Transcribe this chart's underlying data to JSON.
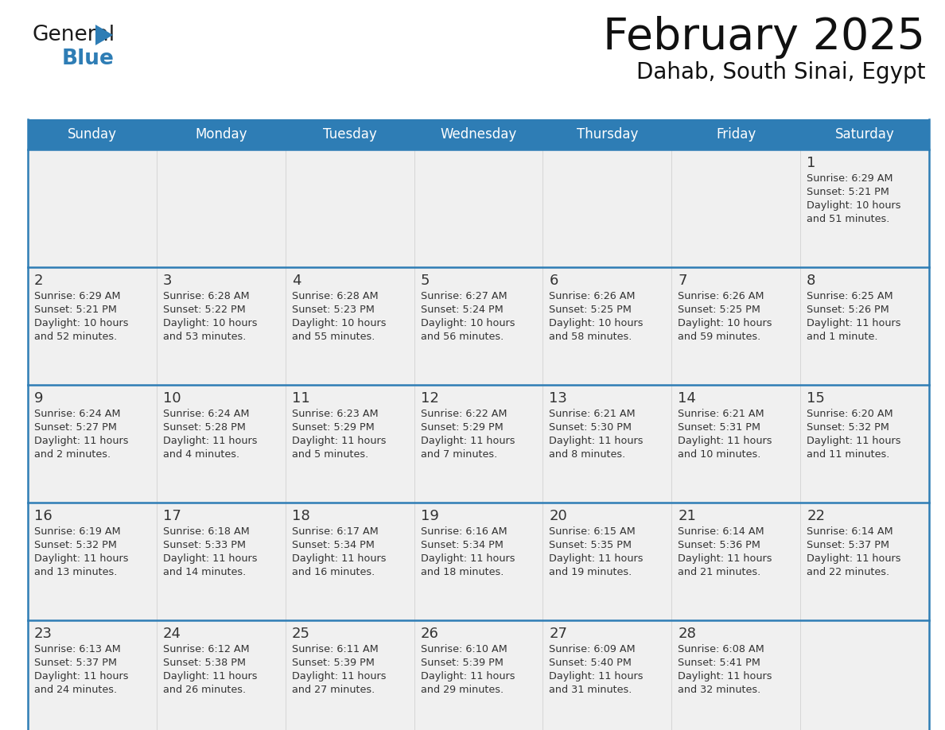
{
  "title": "February 2025",
  "subtitle": "Dahab, South Sinai, Egypt",
  "days_of_week": [
    "Sunday",
    "Monday",
    "Tuesday",
    "Wednesday",
    "Thursday",
    "Friday",
    "Saturday"
  ],
  "header_bg": "#2E7DB5",
  "header_text": "#FFFFFF",
  "cell_bg": "#F0F0F0",
  "divider_color": "#2E7DB5",
  "text_color": "#333333",
  "calendar_data": [
    {
      "day": 1,
      "col": 6,
      "row": 0,
      "sunrise": "6:29 AM",
      "sunset": "5:21 PM",
      "daylight_h": "10 hours",
      "daylight_m": "and 51 minutes."
    },
    {
      "day": 2,
      "col": 0,
      "row": 1,
      "sunrise": "6:29 AM",
      "sunset": "5:21 PM",
      "daylight_h": "10 hours",
      "daylight_m": "and 52 minutes."
    },
    {
      "day": 3,
      "col": 1,
      "row": 1,
      "sunrise": "6:28 AM",
      "sunset": "5:22 PM",
      "daylight_h": "10 hours",
      "daylight_m": "and 53 minutes."
    },
    {
      "day": 4,
      "col": 2,
      "row": 1,
      "sunrise": "6:28 AM",
      "sunset": "5:23 PM",
      "daylight_h": "10 hours",
      "daylight_m": "and 55 minutes."
    },
    {
      "day": 5,
      "col": 3,
      "row": 1,
      "sunrise": "6:27 AM",
      "sunset": "5:24 PM",
      "daylight_h": "10 hours",
      "daylight_m": "and 56 minutes."
    },
    {
      "day": 6,
      "col": 4,
      "row": 1,
      "sunrise": "6:26 AM",
      "sunset": "5:25 PM",
      "daylight_h": "10 hours",
      "daylight_m": "and 58 minutes."
    },
    {
      "day": 7,
      "col": 5,
      "row": 1,
      "sunrise": "6:26 AM",
      "sunset": "5:25 PM",
      "daylight_h": "10 hours",
      "daylight_m": "and 59 minutes."
    },
    {
      "day": 8,
      "col": 6,
      "row": 1,
      "sunrise": "6:25 AM",
      "sunset": "5:26 PM",
      "daylight_h": "11 hours",
      "daylight_m": "and 1 minute."
    },
    {
      "day": 9,
      "col": 0,
      "row": 2,
      "sunrise": "6:24 AM",
      "sunset": "5:27 PM",
      "daylight_h": "11 hours",
      "daylight_m": "and 2 minutes."
    },
    {
      "day": 10,
      "col": 1,
      "row": 2,
      "sunrise": "6:24 AM",
      "sunset": "5:28 PM",
      "daylight_h": "11 hours",
      "daylight_m": "and 4 minutes."
    },
    {
      "day": 11,
      "col": 2,
      "row": 2,
      "sunrise": "6:23 AM",
      "sunset": "5:29 PM",
      "daylight_h": "11 hours",
      "daylight_m": "and 5 minutes."
    },
    {
      "day": 12,
      "col": 3,
      "row": 2,
      "sunrise": "6:22 AM",
      "sunset": "5:29 PM",
      "daylight_h": "11 hours",
      "daylight_m": "and 7 minutes."
    },
    {
      "day": 13,
      "col": 4,
      "row": 2,
      "sunrise": "6:21 AM",
      "sunset": "5:30 PM",
      "daylight_h": "11 hours",
      "daylight_m": "and 8 minutes."
    },
    {
      "day": 14,
      "col": 5,
      "row": 2,
      "sunrise": "6:21 AM",
      "sunset": "5:31 PM",
      "daylight_h": "11 hours",
      "daylight_m": "and 10 minutes."
    },
    {
      "day": 15,
      "col": 6,
      "row": 2,
      "sunrise": "6:20 AM",
      "sunset": "5:32 PM",
      "daylight_h": "11 hours",
      "daylight_m": "and 11 minutes."
    },
    {
      "day": 16,
      "col": 0,
      "row": 3,
      "sunrise": "6:19 AM",
      "sunset": "5:32 PM",
      "daylight_h": "11 hours",
      "daylight_m": "and 13 minutes."
    },
    {
      "day": 17,
      "col": 1,
      "row": 3,
      "sunrise": "6:18 AM",
      "sunset": "5:33 PM",
      "daylight_h": "11 hours",
      "daylight_m": "and 14 minutes."
    },
    {
      "day": 18,
      "col": 2,
      "row": 3,
      "sunrise": "6:17 AM",
      "sunset": "5:34 PM",
      "daylight_h": "11 hours",
      "daylight_m": "and 16 minutes."
    },
    {
      "day": 19,
      "col": 3,
      "row": 3,
      "sunrise": "6:16 AM",
      "sunset": "5:34 PM",
      "daylight_h": "11 hours",
      "daylight_m": "and 18 minutes."
    },
    {
      "day": 20,
      "col": 4,
      "row": 3,
      "sunrise": "6:15 AM",
      "sunset": "5:35 PM",
      "daylight_h": "11 hours",
      "daylight_m": "and 19 minutes."
    },
    {
      "day": 21,
      "col": 5,
      "row": 3,
      "sunrise": "6:14 AM",
      "sunset": "5:36 PM",
      "daylight_h": "11 hours",
      "daylight_m": "and 21 minutes."
    },
    {
      "day": 22,
      "col": 6,
      "row": 3,
      "sunrise": "6:14 AM",
      "sunset": "5:37 PM",
      "daylight_h": "11 hours",
      "daylight_m": "and 22 minutes."
    },
    {
      "day": 23,
      "col": 0,
      "row": 4,
      "sunrise": "6:13 AM",
      "sunset": "5:37 PM",
      "daylight_h": "11 hours",
      "daylight_m": "and 24 minutes."
    },
    {
      "day": 24,
      "col": 1,
      "row": 4,
      "sunrise": "6:12 AM",
      "sunset": "5:38 PM",
      "daylight_h": "11 hours",
      "daylight_m": "and 26 minutes."
    },
    {
      "day": 25,
      "col": 2,
      "row": 4,
      "sunrise": "6:11 AM",
      "sunset": "5:39 PM",
      "daylight_h": "11 hours",
      "daylight_m": "and 27 minutes."
    },
    {
      "day": 26,
      "col": 3,
      "row": 4,
      "sunrise": "6:10 AM",
      "sunset": "5:39 PM",
      "daylight_h": "11 hours",
      "daylight_m": "and 29 minutes."
    },
    {
      "day": 27,
      "col": 4,
      "row": 4,
      "sunrise": "6:09 AM",
      "sunset": "5:40 PM",
      "daylight_h": "11 hours",
      "daylight_m": "and 31 minutes."
    },
    {
      "day": 28,
      "col": 5,
      "row": 4,
      "sunrise": "6:08 AM",
      "sunset": "5:41 PM",
      "daylight_h": "11 hours",
      "daylight_m": "and 32 minutes."
    }
  ],
  "num_rows": 5,
  "num_cols": 7
}
